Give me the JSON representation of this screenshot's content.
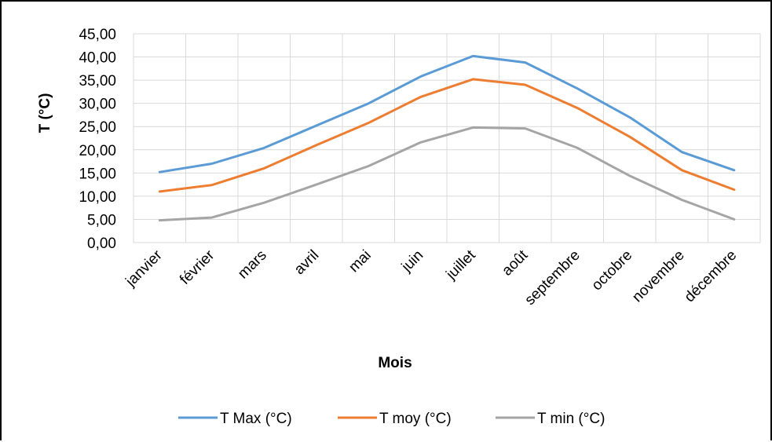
{
  "chart_data": {
    "type": "line",
    "categories": [
      "janvier",
      "février",
      "mars",
      "avril",
      "mai",
      "juin",
      "juillet",
      "août",
      "septembre",
      "octobre",
      "novembre",
      "décembre"
    ],
    "series": [
      {
        "name": "T Max (°C)",
        "color": "#5B9BD5",
        "values": [
          15.2,
          17.0,
          20.4,
          25.2,
          30.0,
          35.8,
          40.2,
          38.8,
          33.2,
          27.0,
          19.5,
          15.6
        ]
      },
      {
        "name": "T moy (°C)",
        "color": "#ED7D31",
        "values": [
          11.0,
          12.4,
          16.0,
          21.0,
          25.8,
          31.4,
          35.2,
          34.0,
          29.0,
          22.8,
          15.6,
          11.4
        ]
      },
      {
        "name": "T min (°C)",
        "color": "#A5A5A5",
        "values": [
          4.8,
          5.4,
          8.6,
          12.5,
          16.5,
          21.6,
          24.8,
          24.6,
          20.4,
          14.4,
          9.2,
          5.0
        ]
      }
    ],
    "yticks": [
      "0,00",
      "5,00",
      "10,00",
      "15,00",
      "20,00",
      "25,00",
      "30,00",
      "35,00",
      "40,00",
      "45,00"
    ],
    "ylim": [
      0,
      45
    ],
    "ystep": 5,
    "xlabel": "Mois",
    "ylabel": "T (°C)",
    "grid": true,
    "legend_position": "bottom"
  }
}
